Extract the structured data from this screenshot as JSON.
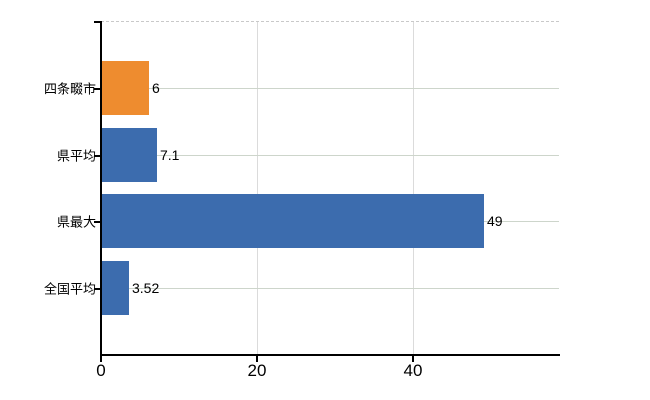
{
  "chart_data": {
    "type": "bar",
    "orientation": "horizontal",
    "title": "",
    "xlabel": "",
    "ylabel": "",
    "categories": [
      "四条畷市",
      "県平均",
      "県最大",
      "全国平均"
    ],
    "values": [
      6,
      7.1,
      49,
      3.52
    ],
    "value_labels": [
      "6",
      "7.1",
      "49",
      "3.52"
    ],
    "bar_colors": [
      "#ee8c2f",
      "#3c6cae",
      "#3c6cae",
      "#3c6cae"
    ],
    "x_ticks": [
      0,
      20,
      40
    ],
    "x_tick_labels": [
      "0",
      "20",
      "40"
    ],
    "xlim": [
      0,
      58.7
    ],
    "grid": true,
    "legend": false,
    "colors": {
      "highlight_bar": "#ee8c2f",
      "default_bar": "#3c6cae",
      "h_gridline": "#cdd5cb",
      "v_gridline": "#dbdbdb",
      "top_border": "#c9c9c9",
      "axis": "#000000",
      "text": "#000000",
      "background": "#ffffff"
    }
  }
}
